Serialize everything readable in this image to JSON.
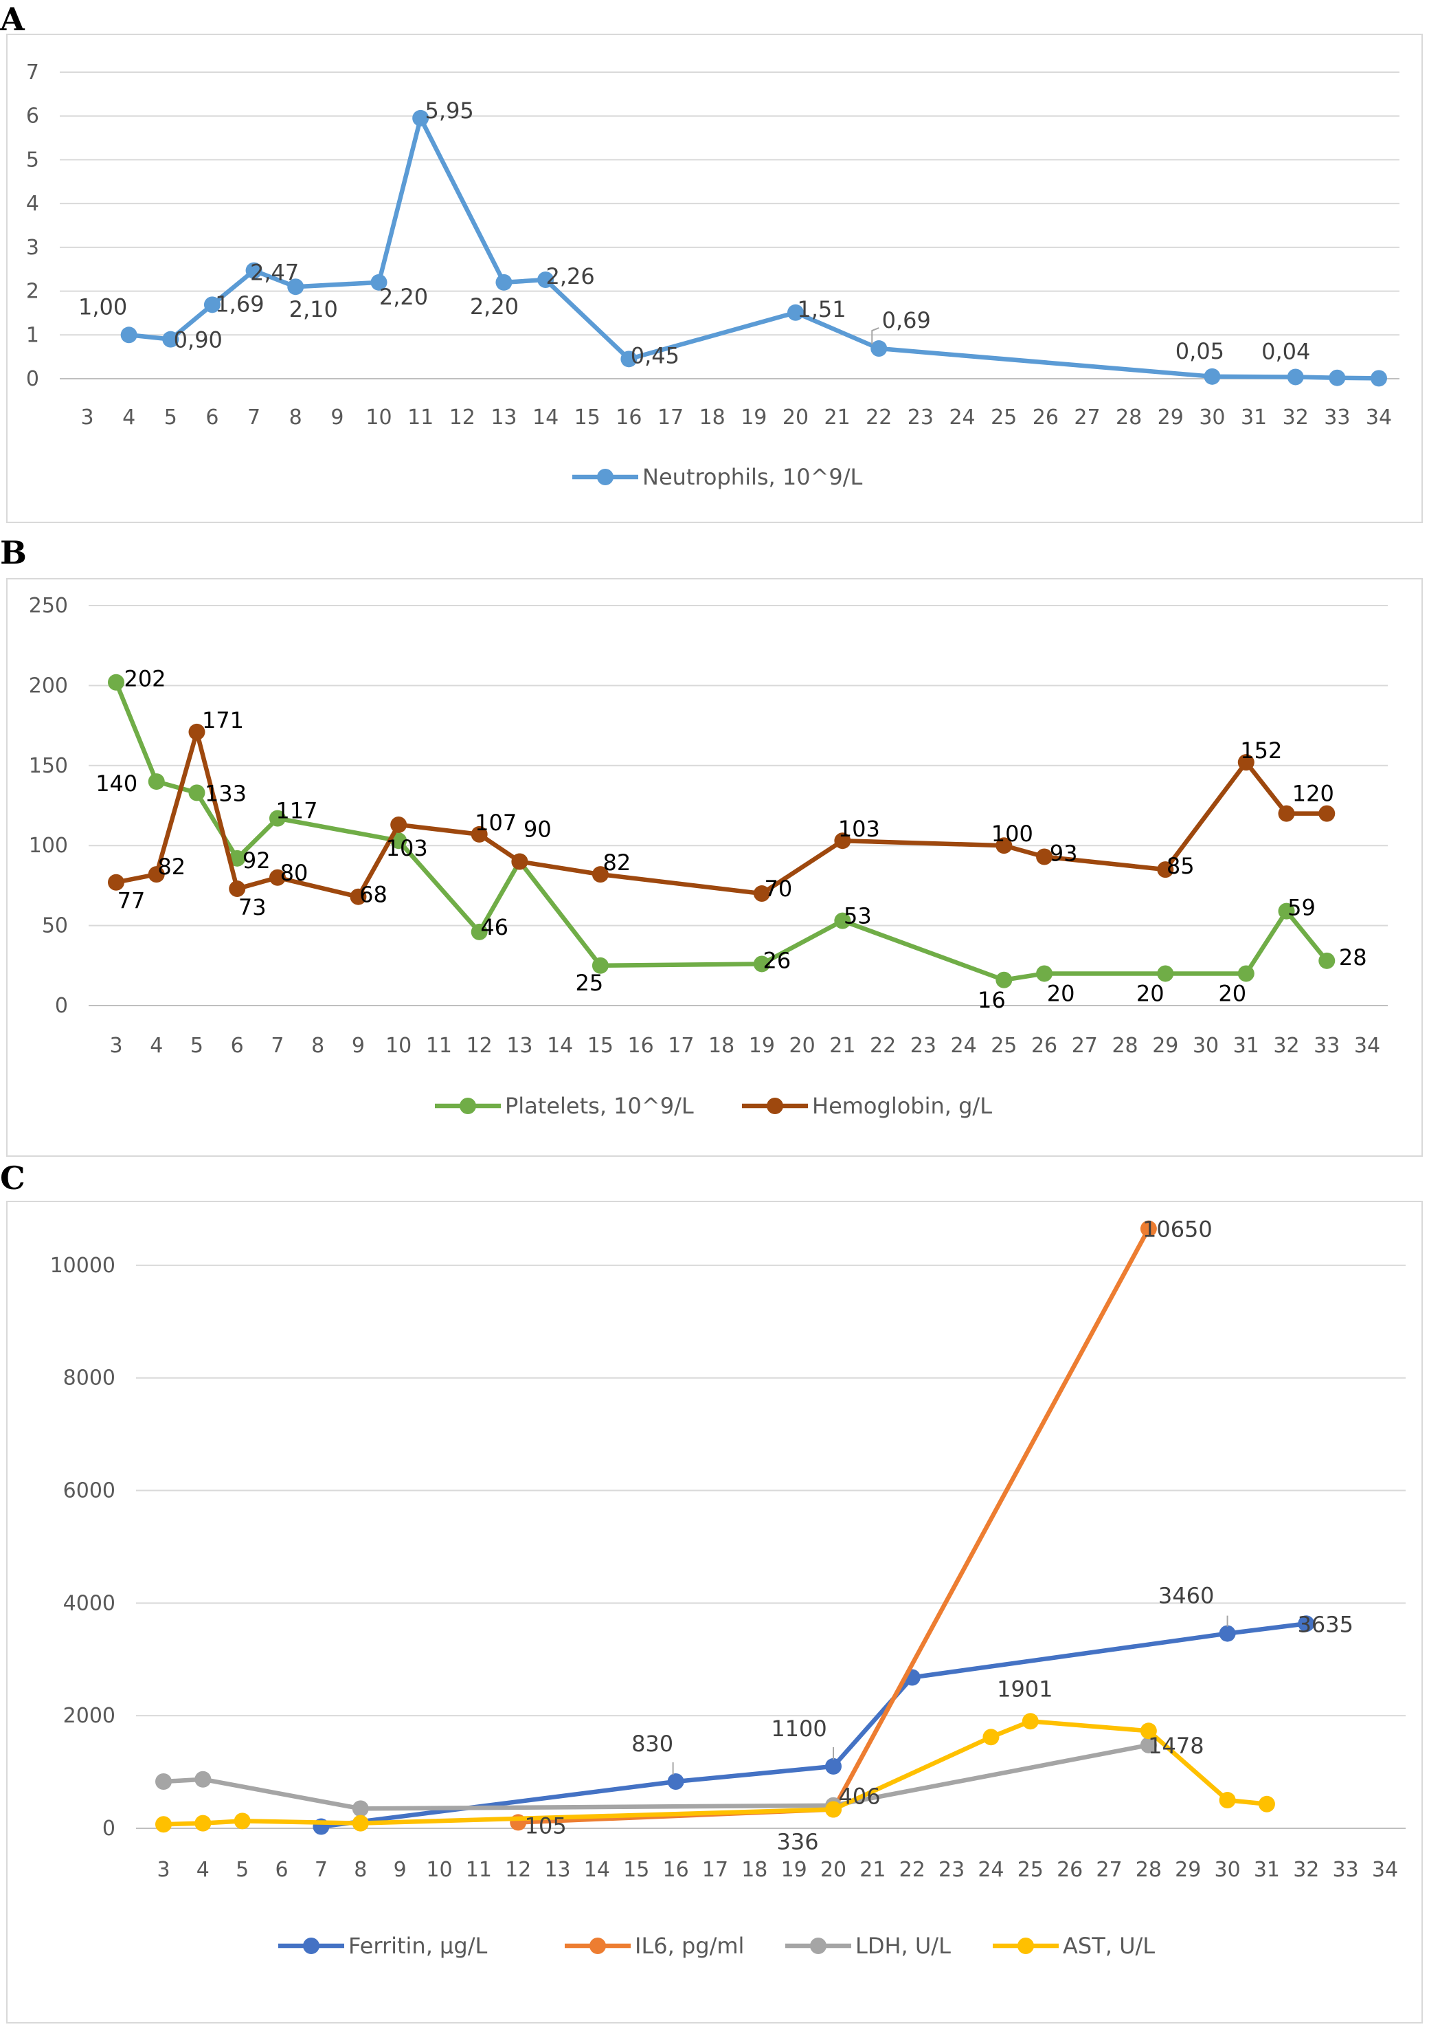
{
  "panels": [
    "A",
    "B",
    "C"
  ],
  "chart_data": [
    {
      "type": "line",
      "panel": "A",
      "categories": [
        "3",
        "4",
        "5",
        "6",
        "7",
        "8",
        "9",
        "10",
        "11",
        "12",
        "13",
        "14",
        "15",
        "16",
        "17",
        "18",
        "19",
        "20",
        "21",
        "22",
        "23",
        "24",
        "25",
        "26",
        "27",
        "28",
        "29",
        "30",
        "31",
        "32",
        "33",
        "34"
      ],
      "ylim": [
        0,
        7
      ],
      "yticks": [
        "0",
        "1",
        "2",
        "3",
        "4",
        "5",
        "6",
        "7"
      ],
      "series": [
        {
          "name": "Neutrophils, 10^9/L",
          "color": "#5B9BD5",
          "points": [
            {
              "x": "4",
              "y": 1.0,
              "label": "1,00"
            },
            {
              "x": "5",
              "y": 0.9,
              "label": "0,90"
            },
            {
              "x": "6",
              "y": 1.69,
              "label": "1,69"
            },
            {
              "x": "7",
              "y": 2.47,
              "label": "2,47"
            },
            {
              "x": "8",
              "y": 2.1,
              "label": "2,10"
            },
            {
              "x": "10",
              "y": 2.2,
              "label": "2,20"
            },
            {
              "x": "11",
              "y": 5.95,
              "label": "5,95"
            },
            {
              "x": "13",
              "y": 2.2,
              "label": "2,20"
            },
            {
              "x": "14",
              "y": 2.26,
              "label": "2,26"
            },
            {
              "x": "16",
              "y": 0.45,
              "label": "0,45"
            },
            {
              "x": "20",
              "y": 1.51,
              "label": "1,51"
            },
            {
              "x": "22",
              "y": 0.69,
              "label": "0,69"
            },
            {
              "x": "30",
              "y": 0.05,
              "label": "0,05"
            },
            {
              "x": "32",
              "y": 0.04,
              "label": "0,04"
            },
            {
              "x": "33",
              "y": 0.02,
              "label": ""
            },
            {
              "x": "34",
              "y": 0.01,
              "label": ""
            }
          ]
        }
      ]
    },
    {
      "type": "line",
      "panel": "B",
      "categories": [
        "3",
        "4",
        "5",
        "6",
        "7",
        "8",
        "9",
        "10",
        "11",
        "12",
        "13",
        "14",
        "15",
        "16",
        "17",
        "18",
        "19",
        "20",
        "21",
        "22",
        "23",
        "24",
        "25",
        "26",
        "27",
        "28",
        "29",
        "30",
        "31",
        "32",
        "33",
        "34"
      ],
      "ylim": [
        0,
        250
      ],
      "yticks": [
        "0",
        "50",
        "100",
        "150",
        "200",
        "250"
      ],
      "series": [
        {
          "name": "Platelets, 10^9/L",
          "color": "#70AD47",
          "points": [
            {
              "x": "3",
              "y": 202,
              "label": "202"
            },
            {
              "x": "4",
              "y": 140,
              "label": "140"
            },
            {
              "x": "5",
              "y": 133,
              "label": "133"
            },
            {
              "x": "6",
              "y": 92,
              "label": "92"
            },
            {
              "x": "7",
              "y": 117,
              "label": "117"
            },
            {
              "x": "10",
              "y": 103,
              "label": "103"
            },
            {
              "x": "12",
              "y": 46,
              "label": "46"
            },
            {
              "x": "13",
              "y": 90,
              "label": "90"
            },
            {
              "x": "15",
              "y": 25,
              "label": "25"
            },
            {
              "x": "19",
              "y": 26,
              "label": "26"
            },
            {
              "x": "21",
              "y": 53,
              "label": "53"
            },
            {
              "x": "25",
              "y": 16,
              "label": "16"
            },
            {
              "x": "26",
              "y": 20,
              "label": "20"
            },
            {
              "x": "29",
              "y": 20,
              "label": "20"
            },
            {
              "x": "31",
              "y": 20,
              "label": "20"
            },
            {
              "x": "32",
              "y": 59,
              "label": "59"
            },
            {
              "x": "33",
              "y": 28,
              "label": "28"
            }
          ]
        },
        {
          "name": "Hemoglobin, g/L",
          "color": "#9E480E",
          "points": [
            {
              "x": "3",
              "y": 77,
              "label": "77"
            },
            {
              "x": "4",
              "y": 82,
              "label": "82"
            },
            {
              "x": "5",
              "y": 171,
              "label": "171"
            },
            {
              "x": "6",
              "y": 73,
              "label": "73"
            },
            {
              "x": "7",
              "y": 80,
              "label": "80"
            },
            {
              "x": "9",
              "y": 68,
              "label": "68"
            },
            {
              "x": "10",
              "y": 113,
              "label": ""
            },
            {
              "x": "12",
              "y": 107,
              "label": "107"
            },
            {
              "x": "13",
              "y": 90,
              "label": ""
            },
            {
              "x": "15",
              "y": 82,
              "label": "82"
            },
            {
              "x": "19",
              "y": 70,
              "label": "70"
            },
            {
              "x": "21",
              "y": 103,
              "label": "103"
            },
            {
              "x": "25",
              "y": 100,
              "label": "100"
            },
            {
              "x": "26",
              "y": 93,
              "label": "93"
            },
            {
              "x": "29",
              "y": 85,
              "label": "85"
            },
            {
              "x": "31",
              "y": 152,
              "label": "152"
            },
            {
              "x": "32",
              "y": 120,
              "label": ""
            },
            {
              "x": "33",
              "y": 120,
              "label": "120"
            }
          ]
        }
      ]
    },
    {
      "type": "line",
      "panel": "C",
      "categories": [
        "3",
        "4",
        "5",
        "6",
        "7",
        "8",
        "9",
        "10",
        "11",
        "12",
        "13",
        "14",
        "15",
        "16",
        "17",
        "18",
        "19",
        "20",
        "21",
        "22",
        "23",
        "24",
        "25",
        "26",
        "27",
        "28",
        "29",
        "30",
        "31",
        "32",
        "33",
        "34"
      ],
      "ylim": [
        0,
        11000
      ],
      "yticks": [
        "0",
        "2000",
        "4000",
        "6000",
        "8000",
        "10000"
      ],
      "series": [
        {
          "name": "Ferritin, µg/L",
          "color": "#4472C4",
          "points": [
            {
              "x": "7",
              "y": 30,
              "label": ""
            },
            {
              "x": "16",
              "y": 830,
              "label": "830"
            },
            {
              "x": "20",
              "y": 1100,
              "label": "1100"
            },
            {
              "x": "22",
              "y": 2680,
              "label": ""
            },
            {
              "x": "30",
              "y": 3460,
              "label": "3460"
            },
            {
              "x": "32",
              "y": 3635,
              "label": "3635"
            }
          ]
        },
        {
          "name": "IL6, pg/ml",
          "color": "#ED7D31",
          "points": [
            {
              "x": "12",
              "y": 105,
              "label": "105"
            },
            {
              "x": "20",
              "y": 336,
              "label": ""
            },
            {
              "x": "28",
              "y": 10650,
              "label": "10650"
            }
          ]
        },
        {
          "name": "LDH, U/L",
          "color": "#A5A5A5",
          "points": [
            {
              "x": "3",
              "y": 830,
              "label": ""
            },
            {
              "x": "4",
              "y": 870,
              "label": ""
            },
            {
              "x": "8",
              "y": 350,
              "label": ""
            },
            {
              "x": "20",
              "y": 406,
              "label": "406"
            },
            {
              "x": "28",
              "y": 1478,
              "label": "1478"
            }
          ]
        },
        {
          "name": "AST, U/L",
          "color": "#FFC000",
          "points": [
            {
              "x": "3",
              "y": 70,
              "label": ""
            },
            {
              "x": "4",
              "y": 90,
              "label": ""
            },
            {
              "x": "5",
              "y": 130,
              "label": ""
            },
            {
              "x": "8",
              "y": 90,
              "label": ""
            },
            {
              "x": "20",
              "y": 336,
              "label": "336"
            },
            {
              "x": "24",
              "y": 1620,
              "label": ""
            },
            {
              "x": "25",
              "y": 1901,
              "label": "1901"
            },
            {
              "x": "28",
              "y": 1730,
              "label": ""
            },
            {
              "x": "30",
              "y": 500,
              "label": ""
            },
            {
              "x": "31",
              "y": 430,
              "label": ""
            }
          ]
        }
      ]
    }
  ]
}
